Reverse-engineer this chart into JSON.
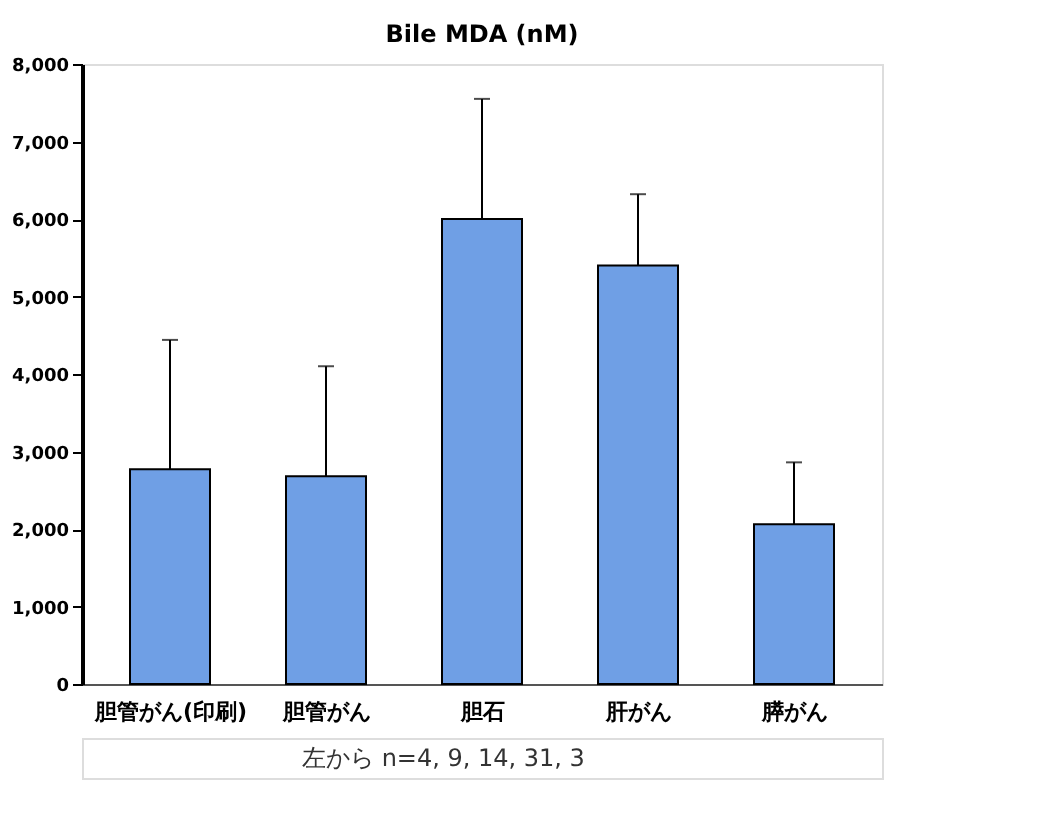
{
  "chart_data": {
    "type": "bar",
    "title": "Bile MDA (nM)",
    "categories": [
      "胆管がん(印刷)",
      "胆管がん",
      "胆石",
      "肝がん",
      "膵がん"
    ],
    "values": [
      2770,
      2680,
      6000,
      5400,
      2060
    ],
    "errors": [
      [
        2770,
        4440
      ],
      [
        2680,
        4100
      ],
      [
        6000,
        7550
      ],
      [
        5400,
        6320
      ],
      [
        2060,
        2860
      ]
    ],
    "color": "#6f9fe5",
    "ylim": [
      0,
      8000
    ],
    "yticks": [
      0,
      {
        "value": 1000,
        "label": "1,000"
      },
      {
        "value": 2000,
        "label": "2,000"
      },
      {
        "value": 3000,
        "label": "3,000"
      },
      {
        "value": 4000,
        "label": "4,000"
      },
      {
        "value": 5000,
        "label": "5,000"
      },
      {
        "value": 6000,
        "label": "6,000"
      },
      {
        "value": 7000,
        "label": "7,000"
      },
      {
        "value": 8000,
        "label": "8,000"
      }
    ],
    "grid": false,
    "legend": false,
    "annotations": [
      "左から n=4, 9, 14, 31, 3"
    ]
  }
}
